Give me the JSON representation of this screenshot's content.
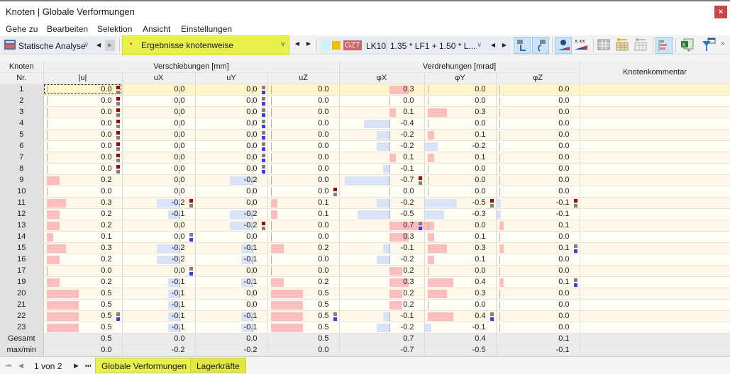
{
  "window": {
    "title": "Knoten | Globale Verformungen",
    "close_icon": "×"
  },
  "menu": [
    "Gehe zu",
    "Bearbeiten",
    "Selektion",
    "Ansicht",
    "Einstellungen"
  ],
  "toolbar": {
    "analysis_label": "Statische Analyse",
    "results_label": "Ergebnisse knotenweise",
    "ls_badge": "GZT",
    "ls_code": "LK10",
    "combination": "1.35 * LF1 + 1.50 * L...",
    "colors": {
      "cyan": "#c8f4fa",
      "orange": "#f0c000",
      "gzt": "#d06464",
      "accent_yellow": "#e8f04a"
    }
  },
  "table": {
    "header_node": [
      "Knoten",
      "Nr."
    ],
    "group_displacements": "Verschiebungen [mm]",
    "group_rotations": "Verdrehungen [mrad]",
    "columns": [
      "|u|",
      "uX",
      "uY",
      "uZ",
      "φX",
      "φY",
      "φZ",
      "Knotenkommentar"
    ],
    "rows": [
      {
        "nr": "1",
        "v": [
          "0.0",
          "0.0",
          "0.0",
          "0.0",
          "0.3",
          "0.0",
          "0.0"
        ]
      },
      {
        "nr": "2",
        "v": [
          "0.0",
          "0.0",
          "0.0",
          "0.0",
          "0.0",
          "0.0",
          "0.0"
        ]
      },
      {
        "nr": "3",
        "v": [
          "0.0",
          "0.0",
          "0.0",
          "0.0",
          "0.1",
          "0.3",
          "0.0"
        ]
      },
      {
        "nr": "4",
        "v": [
          "0.0",
          "0.0",
          "0.0",
          "0.0",
          "-0.4",
          "0.0",
          "0.0"
        ]
      },
      {
        "nr": "5",
        "v": [
          "0.0",
          "0.0",
          "0.0",
          "0.0",
          "-0.2",
          "0.1",
          "0.0"
        ]
      },
      {
        "nr": "6",
        "v": [
          "0.0",
          "0.0",
          "0.0",
          "0.0",
          "-0.2",
          "-0.2",
          "0.0"
        ]
      },
      {
        "nr": "7",
        "v": [
          "0.0",
          "0.0",
          "0.0",
          "0.0",
          "0.1",
          "0.1",
          "0.0"
        ]
      },
      {
        "nr": "8",
        "v": [
          "0.0",
          "0.0",
          "0.0",
          "0.0",
          "-0.1",
          "0.0",
          "0.0"
        ]
      },
      {
        "nr": "9",
        "v": [
          "0.2",
          "0.0",
          "-0.2",
          "0.0",
          "-0.7",
          "0.0",
          "0.0"
        ]
      },
      {
        "nr": "10",
        "v": [
          "0.0",
          "0.0",
          "0.0",
          "0.0",
          "0.0",
          "0.0",
          "0.0"
        ]
      },
      {
        "nr": "11",
        "v": [
          "0.3",
          "-0.2",
          "0.0",
          "0.1",
          "-0.2",
          "-0.5",
          "-0.1"
        ]
      },
      {
        "nr": "12",
        "v": [
          "0.2",
          "-0.1",
          "-0.2",
          "0.1",
          "-0.5",
          "-0.3",
          "-0.1"
        ]
      },
      {
        "nr": "13",
        "v": [
          "0.2",
          "0.0",
          "-0.2",
          "0.0",
          "0.7",
          "0.0",
          "0.1"
        ]
      },
      {
        "nr": "14",
        "v": [
          "0.1",
          "0.0",
          "0.0",
          "0.0",
          "0.3",
          "0.1",
          "0.0"
        ]
      },
      {
        "nr": "15",
        "v": [
          "0.3",
          "-0.2",
          "-0.1",
          "0.2",
          "-0.1",
          "0.3",
          "0.1"
        ]
      },
      {
        "nr": "16",
        "v": [
          "0.2",
          "-0.2",
          "-0.1",
          "0.0",
          "-0.2",
          "0.1",
          "0.0"
        ]
      },
      {
        "nr": "17",
        "v": [
          "0.0",
          "0.0",
          "0.0",
          "0.0",
          "0.2",
          "0.0",
          "0.0"
        ]
      },
      {
        "nr": "19",
        "v": [
          "0.2",
          "-0.1",
          "-0.1",
          "0.2",
          "0.3",
          "0.4",
          "0.1"
        ]
      },
      {
        "nr": "20",
        "v": [
          "0.5",
          "-0.1",
          "0.0",
          "0.5",
          "0.2",
          "0.3",
          "0.0"
        ]
      },
      {
        "nr": "21",
        "v": [
          "0.5",
          "-0.1",
          "0.0",
          "0.5",
          "0.2",
          "0.0",
          "0.0"
        ]
      },
      {
        "nr": "22",
        "v": [
          "0.5",
          "-0.1",
          "-0.1",
          "0.5",
          "-0.1",
          "0.4",
          "0.0"
        ]
      },
      {
        "nr": "23",
        "v": [
          "0.5",
          "-0.1",
          "-0.1",
          "0.5",
          "-0.2",
          "-0.1",
          "0.0"
        ]
      }
    ],
    "summary": [
      {
        "label": "Gesamt",
        "v": [
          "0.5",
          "0.0",
          "0.0",
          "0.5",
          "0.7",
          "0.4",
          "0.1"
        ]
      },
      {
        "label": "max/min",
        "v": [
          "0.0",
          "-0.2",
          "-0.2",
          "0.0",
          "-0.7",
          "-0.5",
          "-0.1"
        ]
      }
    ]
  },
  "footer": {
    "page_text": "1 von 2",
    "tabs": [
      "Globale Verformungen",
      "Lagerkräfte"
    ]
  }
}
